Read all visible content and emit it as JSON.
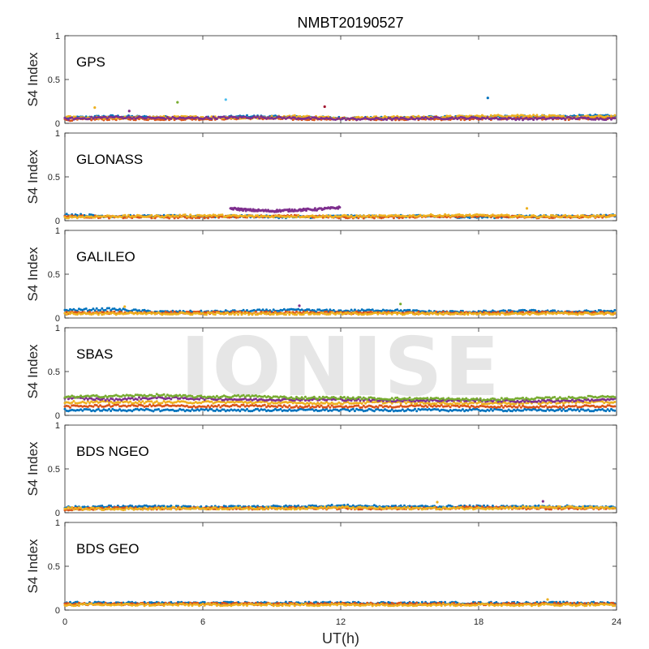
{
  "title": "NMBT20190527",
  "xlabel": "UT(h)",
  "watermark": "IONISE",
  "colors": [
    "#0072BD",
    "#D95319",
    "#EDB120",
    "#7E2F8E",
    "#77AC30",
    "#4DBEEE",
    "#A2142F"
  ],
  "chart_data": [
    {
      "type": "scatter",
      "label": "GPS",
      "ylabel": "S4 Index",
      "xlim": [
        0,
        24
      ],
      "ylim": [
        0,
        1
      ],
      "xticks": [
        0,
        6,
        12,
        18,
        24
      ],
      "yticks": [
        0,
        0.5,
        1
      ],
      "series_count": 7,
      "series": [
        {
          "x": [
            0,
            2,
            4,
            6,
            8,
            10,
            12,
            14,
            16,
            18,
            20,
            22,
            24
          ],
          "y": [
            0.06,
            0.08,
            0.07,
            0.06,
            0.08,
            0.07,
            0.06,
            0.06,
            0.07,
            0.07,
            0.08,
            0.08,
            0.09
          ]
        },
        {
          "x": [
            0,
            2,
            4,
            6,
            8,
            10,
            12,
            14,
            16,
            18,
            20,
            22,
            24
          ],
          "y": [
            0.04,
            0.05,
            0.05,
            0.05,
            0.06,
            0.05,
            0.05,
            0.05,
            0.05,
            0.05,
            0.06,
            0.05,
            0.06
          ]
        },
        {
          "x": [
            0,
            2,
            4,
            6,
            8,
            10,
            12,
            14,
            16,
            18,
            20,
            22,
            24
          ],
          "y": [
            0.07,
            0.06,
            0.07,
            0.07,
            0.06,
            0.08,
            0.06,
            0.07,
            0.07,
            0.08,
            0.09,
            0.07,
            0.08
          ]
        },
        {
          "x": [
            0,
            2,
            4,
            6,
            8,
            10,
            12,
            14,
            16,
            18,
            20,
            22,
            24
          ],
          "y": [
            0.05,
            0.07,
            0.06,
            0.06,
            0.07,
            0.06,
            0.05,
            0.05,
            0.06,
            0.06,
            0.05,
            0.06,
            0.05
          ]
        }
      ],
      "outliers": [
        {
          "x": 1.3,
          "y": 0.18
        },
        {
          "x": 2.8,
          "y": 0.14
        },
        {
          "x": 4.9,
          "y": 0.24
        },
        {
          "x": 7.0,
          "y": 0.27
        },
        {
          "x": 11.3,
          "y": 0.19
        },
        {
          "x": 18.4,
          "y": 0.29
        }
      ]
    },
    {
      "type": "scatter",
      "label": "GLONASS",
      "ylabel": "S4 Index",
      "xlim": [
        0,
        24
      ],
      "ylim": [
        0,
        1
      ],
      "xticks": [
        0,
        6,
        12,
        18,
        24
      ],
      "yticks": [
        0,
        0.5,
        1
      ],
      "series_count": 7,
      "series": [
        {
          "x": [
            0,
            2,
            4,
            6,
            8,
            10,
            12,
            14,
            16,
            18,
            20,
            22,
            24
          ],
          "y": [
            0.07,
            0.05,
            0.05,
            0.05,
            0.05,
            0.04,
            0.05,
            0.05,
            0.05,
            0.04,
            0.05,
            0.05,
            0.06
          ]
        },
        {
          "x": [
            0,
            2,
            4,
            6,
            8,
            10,
            12,
            14,
            16,
            18,
            20,
            22,
            24
          ],
          "y": [
            0.05,
            0.04,
            0.04,
            0.04,
            0.05,
            0.05,
            0.04,
            0.04,
            0.05,
            0.05,
            0.04,
            0.04,
            0.05
          ]
        },
        {
          "x": [
            0,
            2,
            4,
            6,
            8,
            10,
            12,
            14,
            16,
            18,
            20,
            22,
            24
          ],
          "y": [
            0.04,
            0.05,
            0.05,
            0.06,
            0.05,
            0.05,
            0.05,
            0.05,
            0.06,
            0.06,
            0.05,
            0.05,
            0.05
          ]
        },
        {
          "x": [
            7.2,
            8.0,
            9.0,
            10.0,
            11.0,
            12.0
          ],
          "y": [
            0.14,
            0.12,
            0.11,
            0.12,
            0.13,
            0.15
          ]
        }
      ],
      "outliers": [
        {
          "x": 20.1,
          "y": 0.14
        }
      ]
    },
    {
      "type": "scatter",
      "label": "GALILEO",
      "ylabel": "S4 Index",
      "xlim": [
        0,
        24
      ],
      "ylim": [
        0,
        1
      ],
      "xticks": [
        0,
        6,
        12,
        18,
        24
      ],
      "yticks": [
        0,
        0.5,
        1
      ],
      "series_count": 7,
      "series": [
        {
          "x": [
            0,
            2,
            4,
            6,
            8,
            10,
            12,
            14,
            16,
            18,
            20,
            22,
            24
          ],
          "y": [
            0.09,
            0.1,
            0.07,
            0.07,
            0.08,
            0.09,
            0.08,
            0.09,
            0.07,
            0.07,
            0.08,
            0.07,
            0.08
          ]
        },
        {
          "x": [
            0,
            2,
            4,
            6,
            8,
            10,
            12,
            14,
            16,
            18,
            20,
            22,
            24
          ],
          "y": [
            0.06,
            0.06,
            0.06,
            0.06,
            0.06,
            0.06,
            0.06,
            0.06,
            0.06,
            0.06,
            0.06,
            0.06,
            0.06
          ]
        },
        {
          "x": [
            0,
            2,
            4,
            6,
            8,
            10,
            12,
            14,
            16,
            18,
            20,
            22,
            24
          ],
          "y": [
            0.05,
            0.05,
            0.05,
            0.05,
            0.05,
            0.05,
            0.05,
            0.05,
            0.05,
            0.05,
            0.05,
            0.05,
            0.05
          ]
        }
      ],
      "outliers": [
        {
          "x": 2.6,
          "y": 0.13
        },
        {
          "x": 10.2,
          "y": 0.14
        },
        {
          "x": 14.6,
          "y": 0.16
        }
      ]
    },
    {
      "type": "scatter",
      "label": "SBAS",
      "ylabel": "S4 Index",
      "xlim": [
        0,
        24
      ],
      "ylim": [
        0,
        1
      ],
      "xticks": [
        0,
        6,
        12,
        18,
        24
      ],
      "yticks": [
        0,
        0.5,
        1
      ],
      "series_count": 5,
      "series": [
        {
          "x": [
            0,
            2,
            4,
            6,
            8,
            10,
            12,
            14,
            16,
            18,
            20,
            22,
            24
          ],
          "y": [
            0.06,
            0.06,
            0.06,
            0.06,
            0.06,
            0.06,
            0.06,
            0.06,
            0.06,
            0.06,
            0.06,
            0.06,
            0.06
          ]
        },
        {
          "x": [
            0,
            2,
            4,
            6,
            8,
            10,
            12,
            14,
            16,
            18,
            20,
            22,
            24
          ],
          "y": [
            0.1,
            0.11,
            0.11,
            0.1,
            0.11,
            0.1,
            0.1,
            0.1,
            0.11,
            0.1,
            0.1,
            0.1,
            0.11
          ]
        },
        {
          "x": [
            0,
            2,
            4,
            6,
            8,
            10,
            12,
            14,
            16,
            18,
            20,
            22,
            24
          ],
          "y": [
            0.15,
            0.15,
            0.15,
            0.15,
            0.15,
            0.14,
            0.14,
            0.15,
            0.14,
            0.14,
            0.14,
            0.15,
            0.15
          ]
        },
        {
          "x": [
            0,
            2,
            4,
            6,
            8,
            10,
            12,
            14,
            16,
            18,
            20,
            22,
            24
          ],
          "y": [
            0.2,
            0.18,
            0.2,
            0.19,
            0.18,
            0.18,
            0.18,
            0.17,
            0.17,
            0.17,
            0.16,
            0.17,
            0.18
          ]
        },
        {
          "x": [
            0,
            2,
            4,
            6,
            8,
            10,
            12,
            14,
            16,
            18,
            20,
            22,
            24
          ],
          "y": [
            0.21,
            0.22,
            0.23,
            0.21,
            0.22,
            0.2,
            0.2,
            0.19,
            0.19,
            0.18,
            0.19,
            0.2,
            0.22
          ]
        }
      ],
      "outliers": []
    },
    {
      "type": "scatter",
      "label": "BDS NGEO",
      "ylabel": "S4 Index",
      "xlim": [
        0,
        24
      ],
      "ylim": [
        0,
        1
      ],
      "xticks": [
        0,
        6,
        12,
        18,
        24
      ],
      "yticks": [
        0,
        0.5,
        1
      ],
      "series_count": 7,
      "series": [
        {
          "x": [
            0,
            2,
            4,
            6,
            8,
            10,
            12,
            14,
            16,
            18,
            20,
            22,
            24
          ],
          "y": [
            0.06,
            0.07,
            0.07,
            0.06,
            0.07,
            0.07,
            0.08,
            0.07,
            0.07,
            0.07,
            0.07,
            0.07,
            0.06
          ]
        },
        {
          "x": [
            0,
            2,
            4,
            6,
            8,
            10,
            12,
            14,
            16,
            18,
            20,
            22,
            24
          ],
          "y": [
            0.04,
            0.05,
            0.05,
            0.05,
            0.05,
            0.05,
            0.05,
            0.05,
            0.05,
            0.06,
            0.05,
            0.05,
            0.05
          ]
        },
        {
          "x": [
            0,
            2,
            4,
            6,
            8,
            10,
            12,
            14,
            16,
            18,
            20,
            22,
            24
          ],
          "y": [
            0.05,
            0.04,
            0.05,
            0.05,
            0.05,
            0.05,
            0.06,
            0.05,
            0.05,
            0.05,
            0.06,
            0.06,
            0.05
          ]
        }
      ],
      "outliers": [
        {
          "x": 16.2,
          "y": 0.12
        },
        {
          "x": 20.8,
          "y": 0.13
        }
      ]
    },
    {
      "type": "scatter",
      "label": "BDS GEO",
      "ylabel": "S4 Index",
      "xlim": [
        0,
        24
      ],
      "ylim": [
        0,
        1
      ],
      "xticks": [
        0,
        6,
        12,
        18,
        24
      ],
      "yticks": [
        0,
        0.5,
        1
      ],
      "series_count": 5,
      "series": [
        {
          "x": [
            0,
            2,
            4,
            6,
            8,
            10,
            12,
            14,
            16,
            18,
            20,
            22,
            24
          ],
          "y": [
            0.08,
            0.08,
            0.08,
            0.08,
            0.08,
            0.08,
            0.08,
            0.08,
            0.08,
            0.08,
            0.08,
            0.08,
            0.08
          ]
        },
        {
          "x": [
            0,
            2,
            4,
            6,
            8,
            10,
            12,
            14,
            16,
            18,
            20,
            22,
            24
          ],
          "y": [
            0.07,
            0.07,
            0.07,
            0.07,
            0.07,
            0.07,
            0.07,
            0.07,
            0.07,
            0.07,
            0.07,
            0.07,
            0.07
          ]
        },
        {
          "x": [
            0,
            2,
            4,
            6,
            8,
            10,
            12,
            14,
            16,
            18,
            20,
            22,
            24
          ],
          "y": [
            0.06,
            0.06,
            0.06,
            0.06,
            0.06,
            0.06,
            0.06,
            0.06,
            0.06,
            0.06,
            0.06,
            0.06,
            0.06
          ]
        }
      ],
      "outliers": [
        {
          "x": 21.0,
          "y": 0.12
        }
      ]
    }
  ]
}
